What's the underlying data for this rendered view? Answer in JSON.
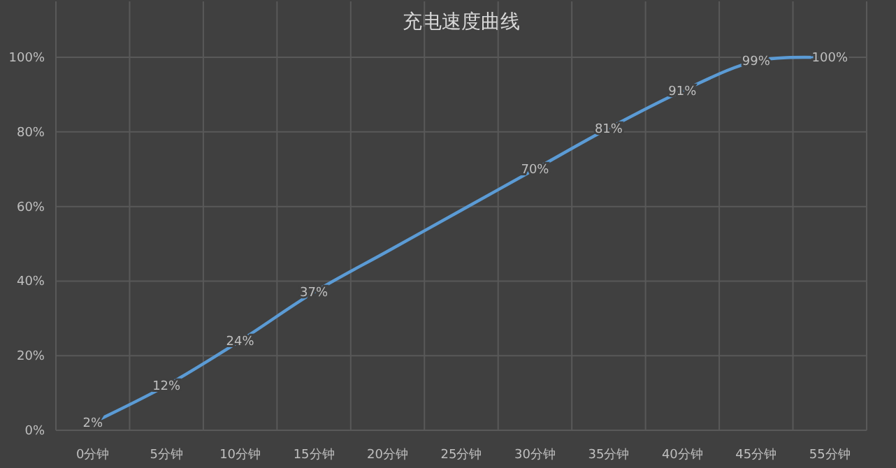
{
  "chart_data": {
    "type": "line",
    "title": "充电速度曲线",
    "categories": [
      "0分钟",
      "5分钟",
      "10分钟",
      "15分钟",
      "20分钟",
      "25分钟",
      "30分钟",
      "35分钟",
      "40分钟",
      "45分钟",
      "55分钟"
    ],
    "series": [
      {
        "color": "#5b9bd5",
        "values": [
          2,
          12,
          24,
          37,
          48,
          59,
          70,
          81,
          91,
          99,
          100
        ],
        "value_labels": [
          "2%",
          "12%",
          "24%",
          "37%",
          null,
          null,
          "70%",
          "81%",
          "91%",
          "99%",
          "100%"
        ]
      }
    ],
    "ylim": [
      0,
      115
    ],
    "yticks": [
      {
        "value": 0,
        "label": "0%"
      },
      {
        "value": 20,
        "label": "20%"
      },
      {
        "value": 40,
        "label": "40%"
      },
      {
        "value": 60,
        "label": "60%"
      },
      {
        "value": 80,
        "label": "80%"
      },
      {
        "value": 100,
        "label": "100%"
      }
    ],
    "grid": true
  }
}
